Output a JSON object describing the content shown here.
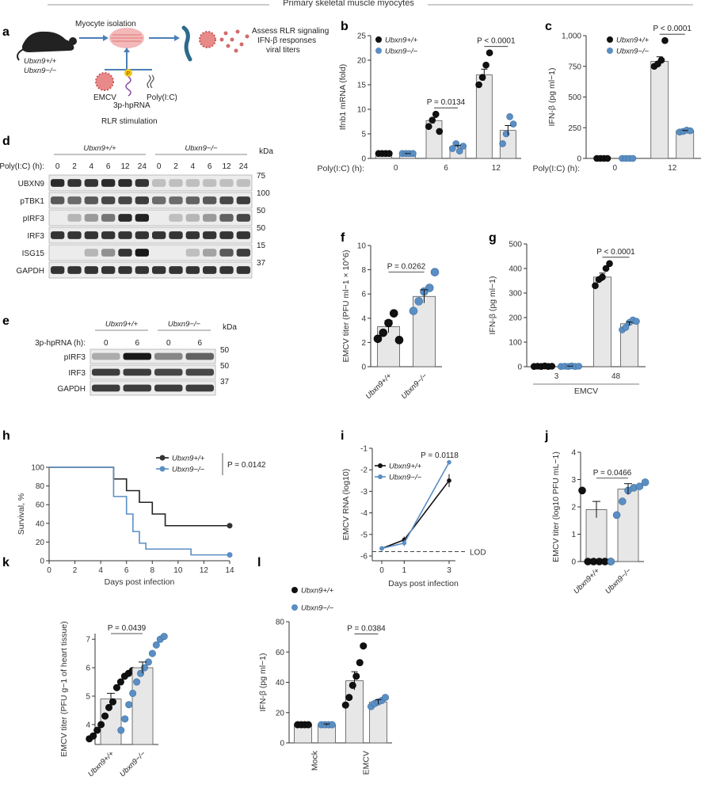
{
  "title": "Primary skeletal muscle myocytes",
  "panel_labels": [
    "a",
    "b",
    "c",
    "d",
    "e",
    "f",
    "g",
    "h",
    "i",
    "j",
    "k",
    "l"
  ],
  "genotypes": {
    "wt": "Ubxn9+/+",
    "ko": "Ubxn9−/−"
  },
  "colors": {
    "wt": "#111111",
    "ko": "#5b8fc4",
    "bar": "#e7e7e7"
  },
  "schematic": {
    "myocyte_isolation": "Myocyte isolation",
    "assess": [
      "Assess RLR signaling",
      "IFN-β responses",
      "viral titers"
    ],
    "emcv": "EMCV",
    "hprna": "3p-hpRNA",
    "polyic": "Poly(I:C)",
    "p_label": "P",
    "stimulation": "RLR stimulation",
    "mouse_labels": [
      "Ubxn9+/+",
      "Ubxn9−/−"
    ]
  },
  "blot_d": {
    "condition": "Poly(I:C) (h):",
    "lanes": [
      "0",
      "2",
      "4",
      "6",
      "12",
      "24",
      "0",
      "2",
      "4",
      "6",
      "12",
      "24"
    ],
    "rows": [
      "UBXN9",
      "pTBK1",
      "pIRF3",
      "IRF3",
      "ISG15",
      "GAPDH"
    ],
    "kda": [
      "75",
      "100",
      "50",
      "50",
      "15",
      "37"
    ],
    "kda_header": "kDa",
    "groups": [
      "Ubxn9+/+",
      "Ubxn9−/−"
    ]
  },
  "blot_e": {
    "condition": "3p-hpRNA (h):",
    "lanes": [
      "0",
      "6",
      "0",
      "6"
    ],
    "rows": [
      "pIRF3",
      "IRF3",
      "GAPDH"
    ],
    "kda": [
      "50",
      "50",
      "37"
    ],
    "kda_header": "kDa",
    "groups": [
      "Ubxn9+/+",
      "Ubxn9−/−"
    ]
  },
  "chart_data": [
    {
      "panel": "b",
      "type": "bar",
      "ylabel": "Ifnb1 mRNA (fold)",
      "xlabel": "Poly(I:C) (h):",
      "categories": [
        "0",
        "6",
        "12"
      ],
      "ylim": [
        0,
        25
      ],
      "yticks": [
        0,
        5,
        10,
        15,
        20,
        25
      ],
      "series": [
        {
          "name": "Ubxn9+/+",
          "values": [
            1.0,
            7.7,
            17.0
          ],
          "points": [
            [
              1,
              1,
              1,
              1
            ],
            [
              6.5,
              7.8,
              9.0,
              5.5
            ],
            [
              15,
              16.5,
              19,
              21.5
            ]
          ]
        },
        {
          "name": "Ubxn9−/−",
          "values": [
            1.0,
            2.4,
            5.7
          ],
          "points": [
            [
              1,
              1,
              1,
              1
            ],
            [
              2,
              3,
              1.5,
              2.5
            ],
            [
              3,
              5,
              8.5,
              7
            ]
          ]
        }
      ],
      "pvalues": [
        {
          "text": "P = 0.0134",
          "category": 1
        },
        {
          "text": "P < 0.0001",
          "category": 2
        }
      ]
    },
    {
      "panel": "c",
      "type": "bar",
      "ylabel": "IFN-β (pg ml−1)",
      "xlabel": "Poly(I:C) (h):",
      "categories": [
        "0",
        "12"
      ],
      "ylim": [
        0,
        1000
      ],
      "yticks": [
        "0",
        "250",
        "500",
        "750",
        "1,000"
      ],
      "series": [
        {
          "name": "Ubxn9+/+",
          "values": [
            0,
            790
          ],
          "points": [
            [
              0,
              0,
              0,
              0
            ],
            [
              750,
              770,
              800,
              960
            ]
          ]
        },
        {
          "name": "Ubxn9−/−",
          "values": [
            0,
            225
          ],
          "points": [
            [
              0,
              0,
              0,
              0
            ],
            [
              215,
              220,
              230,
              225
            ]
          ]
        }
      ],
      "pvalues": [
        {
          "text": "P < 0.0001",
          "category": 1
        }
      ]
    },
    {
      "panel": "f",
      "type": "bar",
      "ylabel": "EMCV titer (PFU ml−1 × 10^6)",
      "categories": [
        "Ubxn9+/+",
        "Ubxn9−/−"
      ],
      "ylim": [
        0,
        10
      ],
      "yticks": [
        0,
        2,
        4,
        6,
        8,
        10
      ],
      "values": [
        3.3,
        5.8
      ],
      "points": [
        [
          2.3,
          2.8,
          3.6,
          4.4,
          2.2
        ],
        [
          4.6,
          5.4,
          6.2,
          6.5,
          7.8
        ]
      ],
      "pvalues": [
        {
          "text": "P = 0.0262"
        }
      ]
    },
    {
      "panel": "g",
      "type": "bar",
      "ylabel": "IFN-β (pg ml−1)",
      "xlabel": "EMCV",
      "categories": [
        "3",
        "48"
      ],
      "ylim": [
        0,
        500
      ],
      "yticks": [
        0,
        100,
        200,
        300,
        400,
        500
      ],
      "series": [
        {
          "name": "Ubxn9+/+",
          "values": [
            2,
            365
          ],
          "points": [
            [
              1,
              2,
              1,
              3,
              1,
              2
            ],
            [
              330,
              355,
              365,
              400,
              420
            ]
          ]
        },
        {
          "name": "Ubxn9−/−",
          "values": [
            2,
            175
          ],
          "points": [
            [
              1,
              2,
              1,
              3,
              1,
              2
            ],
            [
              150,
              160,
              180,
              190,
              185
            ]
          ]
        }
      ],
      "pvalues": [
        {
          "text": "P < 0.0001",
          "category": 1
        }
      ]
    },
    {
      "panel": "h",
      "type": "line",
      "ylabel": "Survival, %",
      "xlabel": "Days post infection",
      "xticks": [
        0,
        2,
        4,
        6,
        8,
        10,
        12,
        14
      ],
      "ylim": [
        0,
        100
      ],
      "yticks": [
        0,
        20,
        40,
        60,
        80,
        100
      ],
      "series": [
        {
          "name": "Ubxn9+/+",
          "steps": [
            [
              0,
              100
            ],
            [
              5,
              87.5
            ],
            [
              6,
              75
            ],
            [
              7,
              62.5
            ],
            [
              8,
              50
            ],
            [
              9,
              37.5
            ],
            [
              14,
              37.5
            ]
          ]
        },
        {
          "name": "Ubxn9−/−",
          "steps": [
            [
              0,
              100
            ],
            [
              5,
              68.75
            ],
            [
              6,
              50
            ],
            [
              6.5,
              31.25
            ],
            [
              7,
              18.75
            ],
            [
              7.5,
              12.5
            ],
            [
              11,
              6.25
            ],
            [
              14,
              6.25
            ]
          ]
        }
      ],
      "pvalues": [
        {
          "text": "P = 0.0142"
        }
      ]
    },
    {
      "panel": "i",
      "type": "line",
      "ylabel": "EMCV RNA (log10)",
      "xlabel": "Days post infection",
      "x": [
        0,
        1,
        3
      ],
      "ylim": [
        -6,
        -1
      ],
      "yticks": [
        -1,
        -2,
        -3,
        -4,
        -5,
        -6
      ],
      "series": [
        {
          "name": "Ubxn9+/+",
          "values": [
            -5.65,
            -5.25,
            -2.5
          ],
          "err": [
            0.05,
            0.15,
            0.3
          ]
        },
        {
          "name": "Ubxn9−/−",
          "values": [
            -5.65,
            -5.4,
            -1.65
          ],
          "err": [
            0.05,
            0.15,
            0.1
          ]
        }
      ],
      "lod": {
        "label": "LOD",
        "value": -5.8
      },
      "pvalues": [
        {
          "text": "P = 0.0118"
        }
      ]
    },
    {
      "panel": "j",
      "type": "bar",
      "ylabel": "EMCV titer (log10 PFU mL−1)",
      "categories": [
        "Ubxn9+/+",
        "Ubxn9−/−"
      ],
      "ylim": [
        0,
        4
      ],
      "yticks": [
        0,
        1,
        2,
        3,
        4
      ],
      "values": [
        1.9,
        2.65
      ],
      "points": [
        [
          2.6,
          0,
          0,
          0,
          0,
          0
        ],
        [
          0,
          1.7,
          2.2,
          2.6,
          2.7,
          2.75,
          2.9
        ]
      ],
      "pvalues": [
        {
          "text": "P = 0.0466"
        }
      ]
    },
    {
      "panel": "k",
      "type": "bar",
      "ylabel": "EMCV titer (PFU g−1 of heart tissue)",
      "categories": [
        "Ubxn9+/+",
        "Ubxn9−/−"
      ],
      "ylim": [
        3.3,
        7.2
      ],
      "yticks": [
        4,
        5,
        6,
        7
      ],
      "values": [
        4.9,
        6.0
      ],
      "points": [
        [
          3.5,
          3.6,
          3.8,
          4.0,
          4.3,
          4.6,
          4.8,
          5.3,
          5.5,
          5.7,
          5.8,
          5.9
        ],
        [
          3.8,
          4.2,
          4.7,
          5.1,
          5.5,
          5.8,
          6.0,
          6.2,
          6.5,
          6.8,
          7.0,
          7.1
        ]
      ],
      "pvalues": [
        {
          "text": "P = 0.0439"
        }
      ]
    },
    {
      "panel": "l",
      "type": "bar",
      "ylabel": "IFN-β (pg ml−1)",
      "categories": [
        "Mock",
        "EMCV"
      ],
      "ylim": [
        0,
        80
      ],
      "yticks": [
        0,
        20,
        40,
        60,
        80
      ],
      "series": [
        {
          "name": "Ubxn9+/+",
          "values": [
            12,
            41
          ],
          "points": [
            [
              12,
              12,
              12,
              12
            ],
            [
              25,
              30,
              38,
              44,
              53,
              64
            ]
          ]
        },
        {
          "name": "Ubxn9−/−",
          "values": [
            12,
            27
          ],
          "points": [
            [
              12,
              12,
              12,
              12
            ],
            [
              24,
              26,
              27,
              28,
              30
            ]
          ]
        }
      ],
      "pvalues": [
        {
          "text": "P = 0.0384",
          "category": 1
        }
      ]
    }
  ]
}
